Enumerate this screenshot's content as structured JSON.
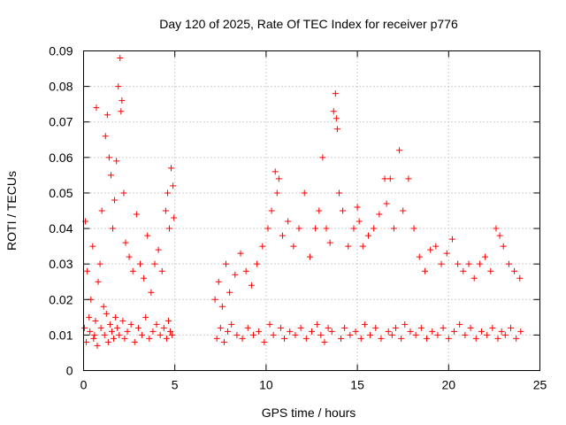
{
  "chart_data": {
    "type": "scatter",
    "title": "Day 120 of 2025, Rate Of TEC Index for receiver p776",
    "xlabel": "GPS time / hours",
    "ylabel": "ROTI / TECUs",
    "xlim": [
      0,
      25
    ],
    "ylim": [
      0,
      0.09
    ],
    "xticks": [
      0,
      5,
      10,
      15,
      20,
      25
    ],
    "xtick_labels": [
      "0",
      "5",
      "10",
      "15",
      "20",
      "25"
    ],
    "yticks": [
      0,
      0.01,
      0.02,
      0.03,
      0.04,
      0.05,
      0.06,
      0.07,
      0.08,
      0.09
    ],
    "ytick_labels": [
      "0",
      "0.01",
      "0.02",
      "0.03",
      "0.04",
      "0.05",
      "0.06",
      "0.07",
      "0.08",
      "0.09"
    ],
    "grid": true,
    "marker": "+",
    "marker_color": "#ff0000",
    "data_gap_hours": [
      5.0,
      7.1
    ],
    "series": [
      {
        "name": "ROTI p776",
        "x": [
          0.05,
          0.1,
          0.2,
          0.3,
          0.4,
          0.5,
          0.6,
          0.7,
          0.8,
          0.9,
          1.0,
          1.1,
          1.2,
          1.3,
          1.4,
          1.5,
          1.6,
          1.7,
          1.8,
          1.9,
          2.0,
          2.05,
          2.1,
          2.2,
          2.3,
          2.5,
          2.7,
          2.9,
          3.1,
          3.3,
          3.5,
          3.7,
          3.9,
          4.1,
          4.3,
          4.5,
          4.6,
          4.7,
          4.8,
          4.9,
          4.95,
          0.15,
          0.35,
          0.55,
          0.65,
          0.75,
          0.95,
          1.15,
          1.25,
          1.35,
          1.45,
          1.55,
          1.65,
          1.75,
          1.85,
          1.95,
          2.15,
          2.25,
          2.4,
          2.6,
          2.8,
          3.0,
          3.2,
          3.4,
          3.6,
          3.8,
          4.0,
          4.2,
          4.4,
          4.55,
          4.65,
          4.75,
          4.85,
          7.2,
          7.4,
          7.6,
          7.8,
          8.0,
          8.3,
          8.6,
          8.9,
          9.2,
          9.5,
          9.8,
          10.1,
          10.3,
          10.5,
          10.6,
          10.7,
          10.9,
          11.2,
          11.5,
          11.8,
          12.1,
          12.4,
          12.7,
          12.9,
          13.1,
          13.3,
          13.5,
          13.7,
          13.8,
          13.85,
          13.9,
          14.0,
          14.2,
          14.5,
          14.8,
          15.0,
          15.1,
          15.3,
          15.6,
          15.9,
          16.2,
          16.5,
          16.6,
          16.8,
          17.0,
          17.3,
          17.5,
          17.8,
          18.1,
          18.4,
          18.7,
          19.0,
          19.3,
          19.6,
          19.9,
          20.2,
          20.5,
          20.8,
          21.1,
          21.4,
          21.7,
          22.0,
          22.3,
          22.6,
          22.8,
          23.0,
          23.3,
          23.6,
          23.9,
          7.3,
          7.5,
          7.7,
          7.9,
          8.1,
          8.4,
          8.7,
          9.0,
          9.3,
          9.6,
          9.9,
          10.2,
          10.4,
          10.8,
          11.0,
          11.3,
          11.6,
          11.9,
          12.2,
          12.5,
          12.8,
          13.0,
          13.2,
          13.4,
          13.6,
          14.1,
          14.3,
          14.6,
          14.9,
          15.2,
          15.4,
          15.7,
          16.0,
          16.3,
          16.7,
          16.9,
          17.1,
          17.4,
          17.6,
          17.9,
          18.2,
          18.5,
          18.8,
          19.1,
          19.4,
          19.7,
          20.0,
          20.3,
          20.6,
          20.9,
          21.2,
          21.5,
          21.8,
          22.1,
          22.4,
          22.7,
          22.9,
          23.1,
          23.4,
          23.7,
          23.95
        ],
        "y": [
          0.012,
          0.042,
          0.028,
          0.015,
          0.02,
          0.035,
          0.01,
          0.074,
          0.025,
          0.03,
          0.045,
          0.018,
          0.066,
          0.072,
          0.06,
          0.055,
          0.04,
          0.048,
          0.059,
          0.08,
          0.088,
          0.073,
          0.076,
          0.05,
          0.036,
          0.032,
          0.028,
          0.044,
          0.03,
          0.026,
          0.038,
          0.022,
          0.03,
          0.034,
          0.028,
          0.045,
          0.05,
          0.04,
          0.057,
          0.052,
          0.043,
          0.008,
          0.011,
          0.009,
          0.014,
          0.007,
          0.012,
          0.01,
          0.016,
          0.008,
          0.013,
          0.011,
          0.009,
          0.015,
          0.012,
          0.01,
          0.014,
          0.009,
          0.011,
          0.013,
          0.008,
          0.012,
          0.01,
          0.015,
          0.009,
          0.011,
          0.013,
          0.01,
          0.012,
          0.009,
          0.014,
          0.011,
          0.01,
          0.02,
          0.025,
          0.018,
          0.03,
          0.022,
          0.027,
          0.033,
          0.028,
          0.024,
          0.03,
          0.035,
          0.04,
          0.045,
          0.056,
          0.05,
          0.054,
          0.038,
          0.042,
          0.035,
          0.04,
          0.05,
          0.032,
          0.04,
          0.045,
          0.06,
          0.04,
          0.036,
          0.073,
          0.078,
          0.071,
          0.068,
          0.05,
          0.045,
          0.035,
          0.04,
          0.046,
          0.042,
          0.035,
          0.038,
          0.04,
          0.044,
          0.054,
          0.047,
          0.054,
          0.04,
          0.062,
          0.045,
          0.054,
          0.04,
          0.032,
          0.028,
          0.034,
          0.035,
          0.03,
          0.033,
          0.037,
          0.03,
          0.028,
          0.03,
          0.026,
          0.03,
          0.032,
          0.028,
          0.04,
          0.038,
          0.035,
          0.03,
          0.028,
          0.026,
          0.009,
          0.012,
          0.008,
          0.011,
          0.013,
          0.01,
          0.009,
          0.012,
          0.01,
          0.011,
          0.008,
          0.013,
          0.01,
          0.012,
          0.009,
          0.011,
          0.01,
          0.012,
          0.009,
          0.011,
          0.013,
          0.01,
          0.008,
          0.012,
          0.011,
          0.009,
          0.012,
          0.01,
          0.011,
          0.009,
          0.013,
          0.01,
          0.012,
          0.009,
          0.011,
          0.01,
          0.012,
          0.009,
          0.013,
          0.011,
          0.01,
          0.012,
          0.009,
          0.011,
          0.01,
          0.012,
          0.009,
          0.011,
          0.013,
          0.01,
          0.012,
          0.009,
          0.011,
          0.01,
          0.012,
          0.009,
          0.011,
          0.01,
          0.012,
          0.009,
          0.011
        ]
      }
    ]
  }
}
